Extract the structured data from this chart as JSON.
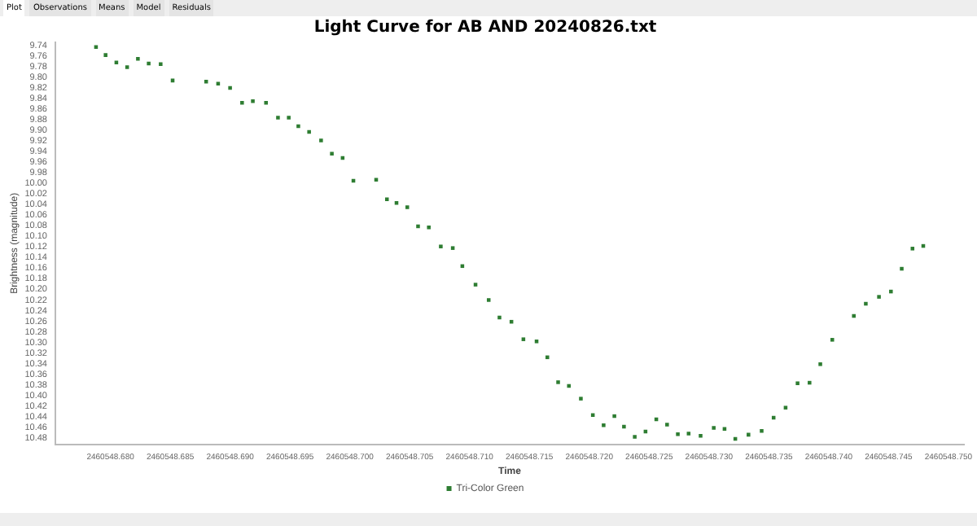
{
  "chart_data": {
    "type": "scatter",
    "title": "Light Curve for AB AND 20240826.txt",
    "xlabel": "Time",
    "ylabel": "Brightness (magnitude)",
    "annotations": [
      "Plot",
      "Observations",
      "Means",
      "Model",
      "Residuals"
    ],
    "xlim": [
      2460548.6754,
      2460548.7513
    ],
    "ylim": [
      10.492,
      9.734
    ],
    "xticks": [
      {
        "value": 2460548.68,
        "label": "2460548.680"
      },
      {
        "value": 2460548.685,
        "label": "2460548.685"
      },
      {
        "value": 2460548.69,
        "label": "2460548.690"
      },
      {
        "value": 2460548.695,
        "label": "2460548.695"
      },
      {
        "value": 2460548.7,
        "label": "2460548.700"
      },
      {
        "value": 2460548.705,
        "label": "2460548.705"
      },
      {
        "value": 2460548.71,
        "label": "2460548.710"
      },
      {
        "value": 2460548.715,
        "label": "2460548.715"
      },
      {
        "value": 2460548.72,
        "label": "2460548.720"
      },
      {
        "value": 2460548.725,
        "label": "2460548.725"
      },
      {
        "value": 2460548.73,
        "label": "2460548.730"
      },
      {
        "value": 2460548.735,
        "label": "2460548.735"
      },
      {
        "value": 2460548.74,
        "label": "2460548.740"
      },
      {
        "value": 2460548.745,
        "label": "2460548.745"
      },
      {
        "value": 2460548.75,
        "label": "2460548.750"
      }
    ],
    "yticks": [
      {
        "value": 9.74,
        "label": "9.74"
      },
      {
        "value": 9.76,
        "label": "9.76"
      },
      {
        "value": 9.78,
        "label": "9.78"
      },
      {
        "value": 9.8,
        "label": "9.80"
      },
      {
        "value": 9.82,
        "label": "9.82"
      },
      {
        "value": 9.84,
        "label": "9.84"
      },
      {
        "value": 9.86,
        "label": "9.86"
      },
      {
        "value": 9.88,
        "label": "9.88"
      },
      {
        "value": 9.9,
        "label": "9.90"
      },
      {
        "value": 9.92,
        "label": "9.92"
      },
      {
        "value": 9.94,
        "label": "9.94"
      },
      {
        "value": 9.96,
        "label": "9.96"
      },
      {
        "value": 9.98,
        "label": "9.98"
      },
      {
        "value": 10,
        "label": "10.00"
      },
      {
        "value": 10.02,
        "label": "10.02"
      },
      {
        "value": 10.04,
        "label": "10.04"
      },
      {
        "value": 10.06,
        "label": "10.06"
      },
      {
        "value": 10.08,
        "label": "10.08"
      },
      {
        "value": 10.1,
        "label": "10.10"
      },
      {
        "value": 10.12,
        "label": "10.12"
      },
      {
        "value": 10.14,
        "label": "10.14"
      },
      {
        "value": 10.16,
        "label": "10.16"
      },
      {
        "value": 10.18,
        "label": "10.18"
      },
      {
        "value": 10.2,
        "label": "10.20"
      },
      {
        "value": 10.22,
        "label": "10.22"
      },
      {
        "value": 10.24,
        "label": "10.24"
      },
      {
        "value": 10.26,
        "label": "10.26"
      },
      {
        "value": 10.28,
        "label": "10.28"
      },
      {
        "value": 10.3,
        "label": "10.30"
      },
      {
        "value": 10.32,
        "label": "10.32"
      },
      {
        "value": 10.34,
        "label": "10.34"
      },
      {
        "value": 10.36,
        "label": "10.36"
      },
      {
        "value": 10.38,
        "label": "10.38"
      },
      {
        "value": 10.4,
        "label": "10.40"
      },
      {
        "value": 10.42,
        "label": "10.42"
      },
      {
        "value": 10.44,
        "label": "10.44"
      },
      {
        "value": 10.46,
        "label": "10.46"
      },
      {
        "value": 10.48,
        "label": "10.48"
      }
    ],
    "grid": false,
    "legend": "bottom",
    "marker": "square",
    "series": [
      {
        "name": "Tri-Color Green",
        "color": "#2e7d32",
        "x": [
          2460548.6788,
          2460548.6796,
          2460548.6805,
          2460548.6814,
          2460548.6823,
          2460548.6832,
          2460548.6842,
          2460548.6852,
          2460548.688,
          2460548.689,
          2460548.69,
          2460548.691,
          2460548.6919,
          2460548.693,
          2460548.694,
          2460548.6949,
          2460548.6957,
          2460548.6966,
          2460548.6976,
          2460548.6985,
          2460548.6994,
          2460548.7003,
          2460548.7022,
          2460548.7031,
          2460548.7039,
          2460548.7048,
          2460548.7057,
          2460548.7066,
          2460548.7076,
          2460548.7086,
          2460548.7094,
          2460548.7105,
          2460548.7116,
          2460548.7125,
          2460548.7135,
          2460548.7145,
          2460548.7156,
          2460548.7165,
          2460548.7174,
          2460548.7183,
          2460548.7193,
          2460548.7203,
          2460548.7212,
          2460548.7221,
          2460548.7229,
          2460548.7238,
          2460548.7247,
          2460548.7256,
          2460548.7265,
          2460548.7274,
          2460548.7283,
          2460548.7293,
          2460548.7304,
          2460548.7313,
          2460548.7322,
          2460548.7333,
          2460548.7344,
          2460548.7354,
          2460548.7364,
          2460548.7374,
          2460548.7384,
          2460548.7393,
          2460548.7403,
          2460548.7421,
          2460548.7431,
          2460548.7442,
          2460548.7452,
          2460548.7461,
          2460548.747,
          2460548.7479
        ],
        "values": [
          9.743,
          9.758,
          9.772,
          9.781,
          9.765,
          9.774,
          9.775,
          9.806,
          9.808,
          9.812,
          9.82,
          9.848,
          9.845,
          9.848,
          9.876,
          9.876,
          9.892,
          9.903,
          9.919,
          9.944,
          9.952,
          9.995,
          9.993,
          10.03,
          10.037,
          10.045,
          10.081,
          10.083,
          10.119,
          10.122,
          10.156,
          10.191,
          10.22,
          10.253,
          10.261,
          10.294,
          10.298,
          10.328,
          10.375,
          10.382,
          10.406,
          10.437,
          10.456,
          10.439,
          10.459,
          10.478,
          10.468,
          10.445,
          10.455,
          10.473,
          10.472,
          10.476,
          10.461,
          10.463,
          10.482,
          10.474,
          10.467,
          10.442,
          10.423,
          10.377,
          10.376,
          10.341,
          10.295,
          10.25,
          10.227,
          10.214,
          10.204,
          10.161,
          10.123,
          10.118
        ]
      }
    ]
  }
}
